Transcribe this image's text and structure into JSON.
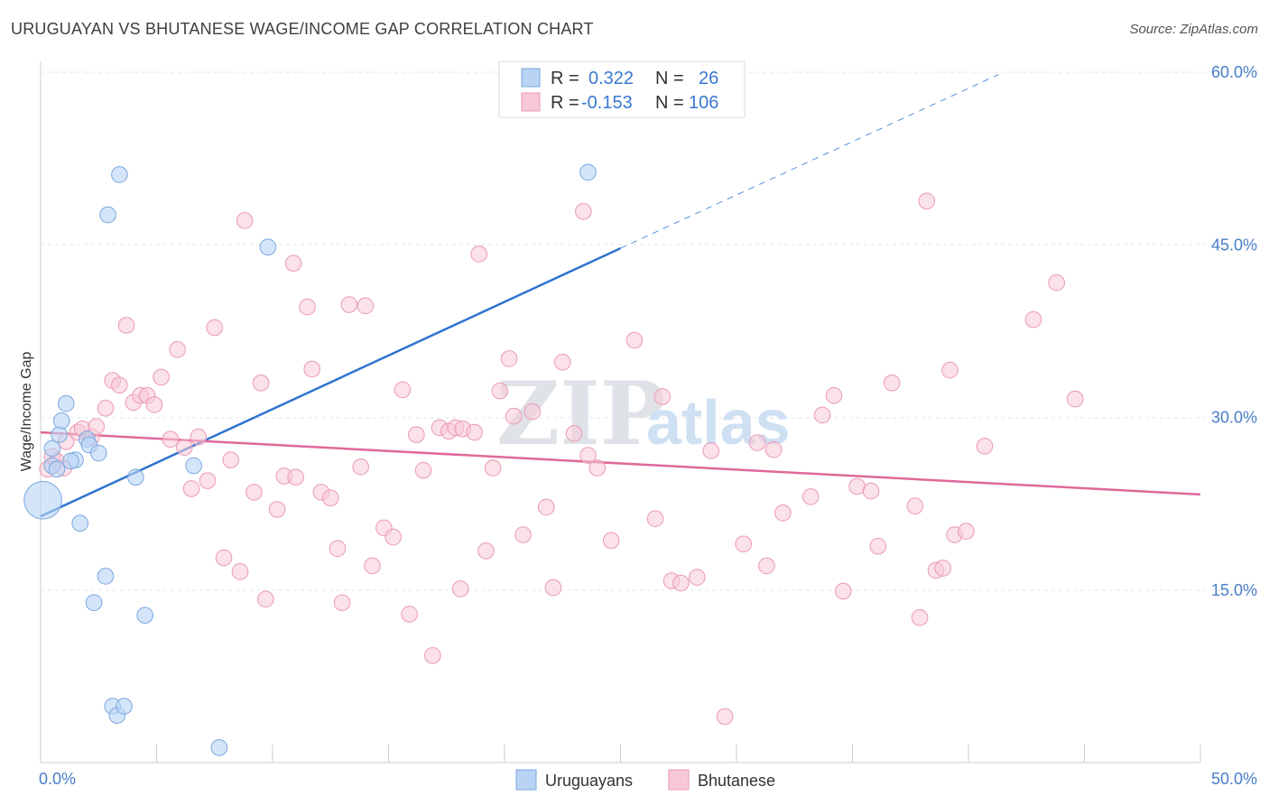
{
  "title": "URUGUAYAN VS BHUTANESE WAGE/INCOME GAP CORRELATION CHART",
  "source": "Source: ZipAtlas.com",
  "watermark": {
    "zip": "ZIP",
    "atlas": "atlas"
  },
  "colors": {
    "uruguayan_fill": "#b9d3f5",
    "uruguayan_stroke": "#7aa7df",
    "uruguayan_line": "#2d74d0",
    "bhutanese_fill": "#f8c8d6",
    "bhutanese_stroke": "#ea9ab4",
    "bhutanese_line": "#e0699a",
    "tick_text": "#4a7ec9"
  },
  "legend": {
    "rows": [
      {
        "r_label": "R =",
        "r_value": "0.322",
        "n_label": "N =",
        "n_value": "26"
      },
      {
        "r_label": "R =",
        "r_value": "-0.153",
        "n_label": "N =",
        "n_value": "106"
      }
    ]
  },
  "bottom_legend": [
    "Uruguayans",
    "Bhutanese"
  ],
  "chart_data": {
    "type": "scatter",
    "title": "URUGUAYAN VS BHUTANESE WAGE/INCOME GAP CORRELATION CHART",
    "xlabel": "",
    "ylabel": "Wage/Income Gap",
    "xlim": [
      0,
      50
    ],
    "ylim": [
      0,
      60
    ],
    "x_tick_labels": [
      {
        "value": 0,
        "label": "0.0%"
      },
      {
        "value": 50,
        "label": "50.0%"
      }
    ],
    "y_tick_labels": [
      {
        "value": 15,
        "label": "15.0%"
      },
      {
        "value": 30,
        "label": "30.0%"
      },
      {
        "value": 45,
        "label": "45.0%"
      },
      {
        "value": 60,
        "label": "60.0%"
      }
    ],
    "series": [
      {
        "name": "Uruguayans",
        "r": 0.322,
        "n": 26,
        "trend": {
          "x0": 0,
          "y0": 21.4,
          "x1": 25,
          "y1": 44.7,
          "dash_x1": 41.3,
          "dash_y1": 59.8
        },
        "points": [
          [
            0.1,
            22.8,
            26
          ],
          [
            0.5,
            25.8,
            11
          ],
          [
            0.5,
            27.3,
            11
          ],
          [
            0.8,
            28.5,
            11
          ],
          [
            0.9,
            29.7,
            11
          ],
          [
            1.1,
            31.2,
            11
          ],
          [
            1.5,
            26.3,
            11
          ],
          [
            1.7,
            20.8,
            11
          ],
          [
            2.0,
            28.1,
            11
          ],
          [
            2.1,
            27.6,
            11
          ],
          [
            2.3,
            13.9,
            11
          ],
          [
            2.5,
            26.9,
            11
          ],
          [
            2.8,
            16.2,
            11
          ],
          [
            2.9,
            47.6,
            11
          ],
          [
            3.1,
            4.9,
            11
          ],
          [
            3.3,
            4.1,
            11
          ],
          [
            3.4,
            51.1,
            11
          ],
          [
            3.6,
            4.9,
            11
          ],
          [
            4.1,
            24.8,
            11
          ],
          [
            4.5,
            12.8,
            11
          ],
          [
            6.6,
            25.8,
            11
          ],
          [
            7.7,
            1.3,
            11
          ],
          [
            9.8,
            44.8,
            11
          ],
          [
            23.6,
            51.3,
            11
          ],
          [
            0.7,
            25.5,
            11
          ],
          [
            1.3,
            26.2,
            11
          ]
        ]
      },
      {
        "name": "Bhutanese",
        "r": -0.153,
        "n": 106,
        "trend": {
          "x0": 0,
          "y0": 28.7,
          "x1": 50,
          "y1": 23.3
        },
        "points": [
          [
            0.3,
            25.5,
            11
          ],
          [
            0.5,
            26.6,
            11
          ],
          [
            0.7,
            26.2,
            11
          ],
          [
            1.0,
            25.6,
            11
          ],
          [
            1.1,
            27.9,
            11
          ],
          [
            1.6,
            28.7,
            11
          ],
          [
            1.8,
            29.0,
            11
          ],
          [
            2.2,
            28.3,
            11
          ],
          [
            2.4,
            29.2,
            11
          ],
          [
            2.8,
            30.8,
            11
          ],
          [
            3.1,
            33.2,
            11
          ],
          [
            3.4,
            32.8,
            11
          ],
          [
            3.7,
            38.0,
            11
          ],
          [
            4.0,
            31.3,
            11
          ],
          [
            4.3,
            31.9,
            11
          ],
          [
            4.6,
            31.9,
            11
          ],
          [
            4.9,
            31.1,
            11
          ],
          [
            5.2,
            33.5,
            11
          ],
          [
            5.6,
            28.1,
            11
          ],
          [
            5.9,
            35.9,
            11
          ],
          [
            6.2,
            27.4,
            11
          ],
          [
            6.5,
            23.8,
            11
          ],
          [
            6.8,
            28.3,
            11
          ],
          [
            7.2,
            24.5,
            11
          ],
          [
            7.5,
            37.8,
            11
          ],
          [
            7.9,
            17.8,
            11
          ],
          [
            8.2,
            26.3,
            11
          ],
          [
            8.6,
            16.6,
            11
          ],
          [
            8.8,
            47.1,
            11
          ],
          [
            9.2,
            23.5,
            11
          ],
          [
            9.5,
            33.0,
            11
          ],
          [
            9.7,
            14.2,
            11
          ],
          [
            10.2,
            22.0,
            11
          ],
          [
            10.5,
            24.9,
            11
          ],
          [
            10.9,
            43.4,
            11
          ],
          [
            11.0,
            24.8,
            11
          ],
          [
            11.5,
            39.6,
            11
          ],
          [
            11.7,
            34.2,
            11
          ],
          [
            12.1,
            23.5,
            11
          ],
          [
            12.5,
            23.0,
            11
          ],
          [
            12.8,
            18.6,
            11
          ],
          [
            13.0,
            13.9,
            11
          ],
          [
            13.3,
            39.8,
            11
          ],
          [
            13.8,
            25.7,
            11
          ],
          [
            14.0,
            39.7,
            11
          ],
          [
            14.3,
            17.1,
            11
          ],
          [
            14.8,
            20.4,
            11
          ],
          [
            15.2,
            19.6,
            11
          ],
          [
            15.6,
            32.4,
            11
          ],
          [
            15.9,
            12.9,
            11
          ],
          [
            16.2,
            28.5,
            11
          ],
          [
            16.5,
            25.4,
            11
          ],
          [
            16.9,
            9.3,
            11
          ],
          [
            17.2,
            29.1,
            11
          ],
          [
            17.6,
            28.8,
            11
          ],
          [
            17.9,
            29.1,
            11
          ],
          [
            18.1,
            15.1,
            11
          ],
          [
            18.2,
            29.0,
            11
          ],
          [
            18.7,
            28.7,
            11
          ],
          [
            18.9,
            44.2,
            11
          ],
          [
            19.2,
            18.4,
            11
          ],
          [
            19.5,
            25.6,
            11
          ],
          [
            19.8,
            32.3,
            11
          ],
          [
            20.2,
            35.1,
            11
          ],
          [
            20.4,
            30.1,
            11
          ],
          [
            20.8,
            19.8,
            11
          ],
          [
            21.2,
            30.5,
            11
          ],
          [
            21.8,
            22.2,
            11
          ],
          [
            22.1,
            15.2,
            11
          ],
          [
            22.5,
            34.8,
            11
          ],
          [
            23.0,
            28.6,
            11
          ],
          [
            23.4,
            47.9,
            11
          ],
          [
            23.6,
            26.7,
            11
          ],
          [
            24.0,
            25.6,
            11
          ],
          [
            24.6,
            19.3,
            11
          ],
          [
            25.6,
            36.7,
            11
          ],
          [
            26.5,
            21.2,
            11
          ],
          [
            26.8,
            31.8,
            11
          ],
          [
            27.2,
            15.8,
            11
          ],
          [
            27.6,
            15.6,
            11
          ],
          [
            28.3,
            16.1,
            11
          ],
          [
            28.9,
            27.1,
            11
          ],
          [
            29.5,
            4.0,
            11
          ],
          [
            30.3,
            19.0,
            11
          ],
          [
            30.9,
            27.8,
            11
          ],
          [
            31.3,
            17.1,
            11
          ],
          [
            31.6,
            27.2,
            11
          ],
          [
            32.0,
            21.7,
            11
          ],
          [
            33.2,
            23.1,
            11
          ],
          [
            33.7,
            30.2,
            11
          ],
          [
            34.2,
            31.9,
            11
          ],
          [
            34.6,
            14.9,
            11
          ],
          [
            35.2,
            24.0,
            11
          ],
          [
            35.8,
            23.6,
            11
          ],
          [
            36.1,
            18.8,
            11
          ],
          [
            36.7,
            33.0,
            11
          ],
          [
            37.7,
            22.3,
            11
          ],
          [
            37.9,
            12.6,
            11
          ],
          [
            38.2,
            48.8,
            11
          ],
          [
            38.6,
            16.7,
            11
          ],
          [
            38.9,
            16.9,
            11
          ],
          [
            39.2,
            34.1,
            11
          ],
          [
            39.4,
            19.8,
            11
          ],
          [
            39.9,
            20.1,
            11
          ],
          [
            40.7,
            27.5,
            11
          ],
          [
            42.8,
            38.5,
            11
          ],
          [
            43.8,
            41.7,
            11
          ],
          [
            44.6,
            31.6,
            11
          ]
        ]
      }
    ]
  }
}
